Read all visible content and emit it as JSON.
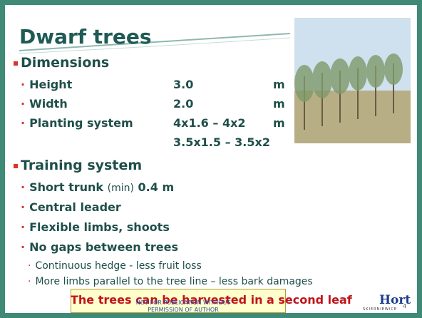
{
  "header": {
    "title": "Dwarf trees"
  },
  "dimensions": {
    "heading": "Dimensions",
    "rows": [
      [
        "Height",
        "3.0",
        "m"
      ],
      [
        "Width",
        "2.0",
        "m"
      ],
      [
        "Planting system",
        "4x1.6 – 4x2",
        "m"
      ]
    ],
    "extra": "3.5x1.5 – 3.5x2"
  },
  "training": {
    "heading": "Training system",
    "trunk": {
      "label": "Short trunk",
      "qualifier": "(min)",
      "value": "0.4 m"
    },
    "items": [
      "Central leader",
      "Flexible limbs, shoots",
      "No gaps between trees"
    ],
    "subitems": [
      "Continuous hedge - less fruit loss",
      "More limbs parallel to the tree line – less bark damages"
    ]
  },
  "banner": "The trees can be harvested in a second leaf",
  "watermark": [
    "NOT FOR PUBLICATION WITHOUT",
    "PERMISSION OF AUTHOR"
  ],
  "logo": {
    "name": "Hort",
    "place": "SKIERNIEWICE"
  },
  "page_number": "4"
}
